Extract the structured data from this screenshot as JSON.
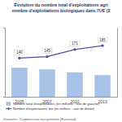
{
  "chart_data": {
    "type": "bar",
    "title": "Évolution du nombre total d'exploitations agri",
    "subtitle": "nombre d'exploitations biologiques dans l'UE (2",
    "categories": [
      "2005",
      "2007",
      "2010",
      "2013"
    ],
    "series": [
      {
        "name": "Nombre total d'exploitations (en millions - axe de gauche)",
        "type": "bar",
        "color": "#a7c2e6",
        "values": [
          14.5,
          13.7,
          12.2,
          10.8
        ]
      },
      {
        "name": "Nombre d'exploitations bio (en milliers - axe de droite)",
        "type": "line",
        "axis": "y2",
        "color": "#5b4a9e",
        "marker": "circle",
        "line_style": "solid",
        "data_labels": true,
        "values": [
          140,
          145,
          171,
          185
        ]
      }
    ],
    "ylim": [
      0,
      35
    ],
    "y2lim": [
      0,
      250
    ],
    "tick_labels": "x",
    "legend": "bottom",
    "annotations": [
      "Données: Commission européenne (Eurostat)."
    ]
  }
}
